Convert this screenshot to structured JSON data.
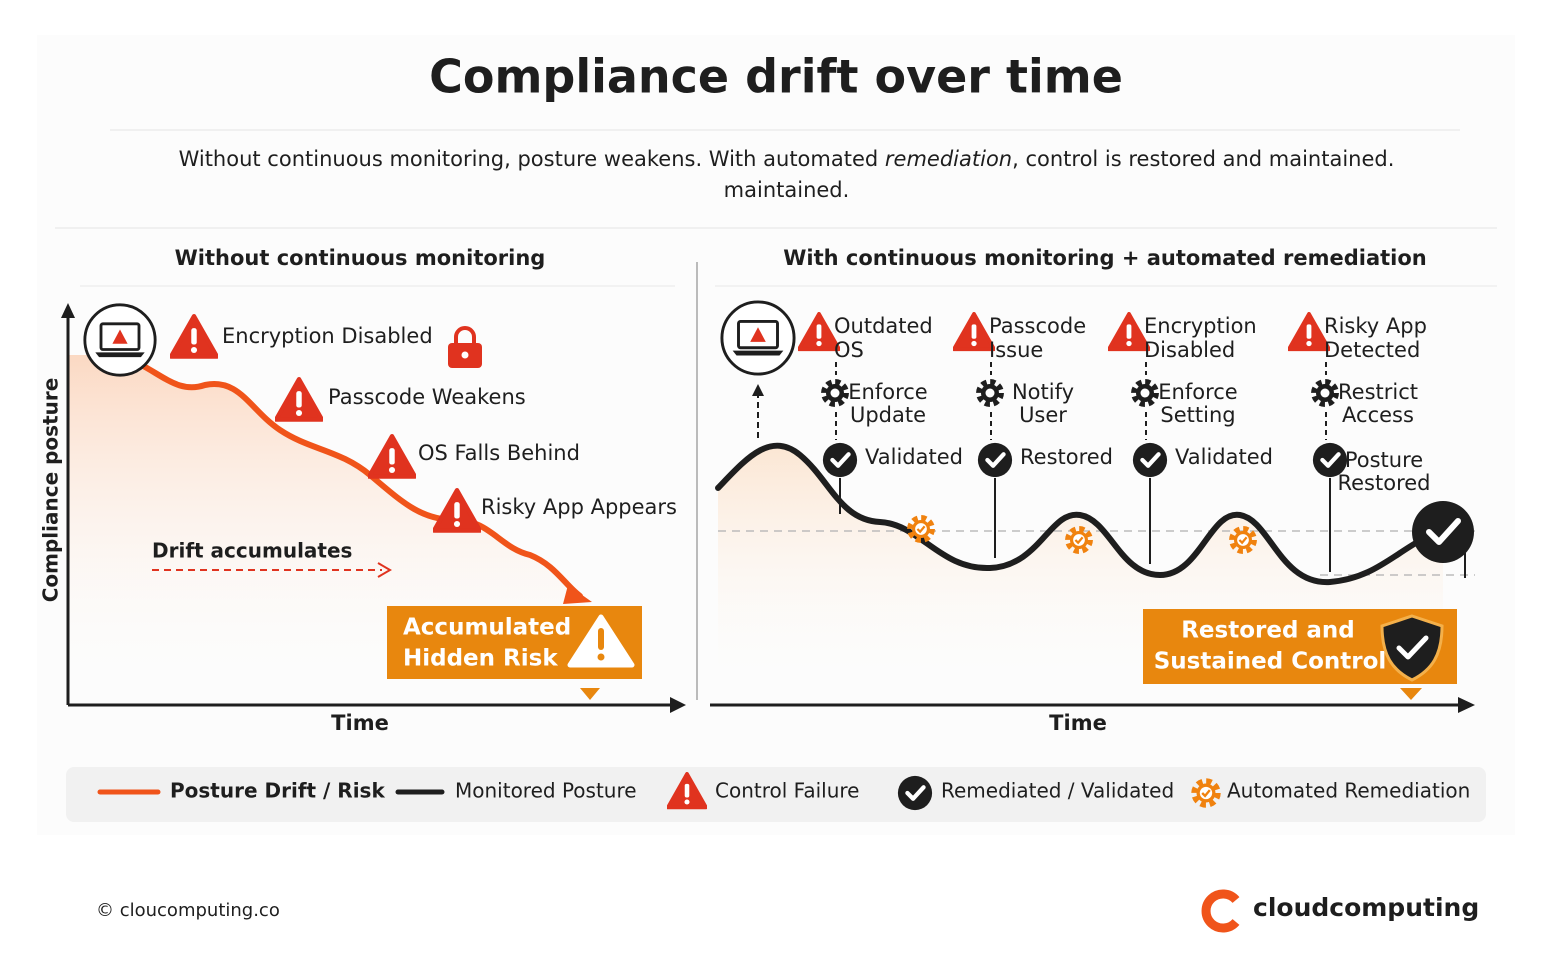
{
  "header": {
    "title": "Compliance drift over time",
    "subtitle": [
      "Without continuous monitoring, posture weakens. With automated ",
      "remediation",
      ", control is restored and maintained."
    ],
    "subtitle_extra": "maintained."
  },
  "left_panel": {
    "title": "Without continuous monitoring",
    "y_axis": "Compliance posture",
    "x_axis": "Time",
    "events": [
      "Encryption Disabled",
      "Passcode Weakens",
      "OS Falls Behind",
      "Risky App Appears"
    ],
    "drift_label": "Drift accumulates",
    "callout": [
      "Accumulated",
      "Hidden Risk"
    ]
  },
  "right_panel": {
    "title": "With continuous monitoring + automated remediation",
    "x_axis": "Time",
    "steps": [
      {
        "failure": [
          "Outdated",
          "OS"
        ],
        "action": [
          "Enforce",
          "Update"
        ],
        "result": [
          "Validated"
        ]
      },
      {
        "failure": [
          "Passcode",
          "Issue"
        ],
        "action": [
          "Notify",
          "User"
        ],
        "result": [
          "Restored"
        ]
      },
      {
        "failure": [
          "Encryption",
          "Disabled"
        ],
        "action": [
          "Enforce",
          "Setting"
        ],
        "result": [
          "Validated"
        ]
      },
      {
        "failure": [
          "Risky App",
          "Detected"
        ],
        "action": [
          "Restrict",
          "Access"
        ],
        "result": [
          "Posture",
          "Restored"
        ]
      }
    ],
    "callout": [
      "Restored and",
      "Sustained Control"
    ]
  },
  "legend": [
    "Posture Drift / Risk",
    "Monitored Posture",
    "Control Failure",
    "Remediated / Validated",
    "Automated Remediation"
  ],
  "footer": {
    "copyright": "© cloucomputing.co",
    "brand": "cloudcomputing"
  }
}
